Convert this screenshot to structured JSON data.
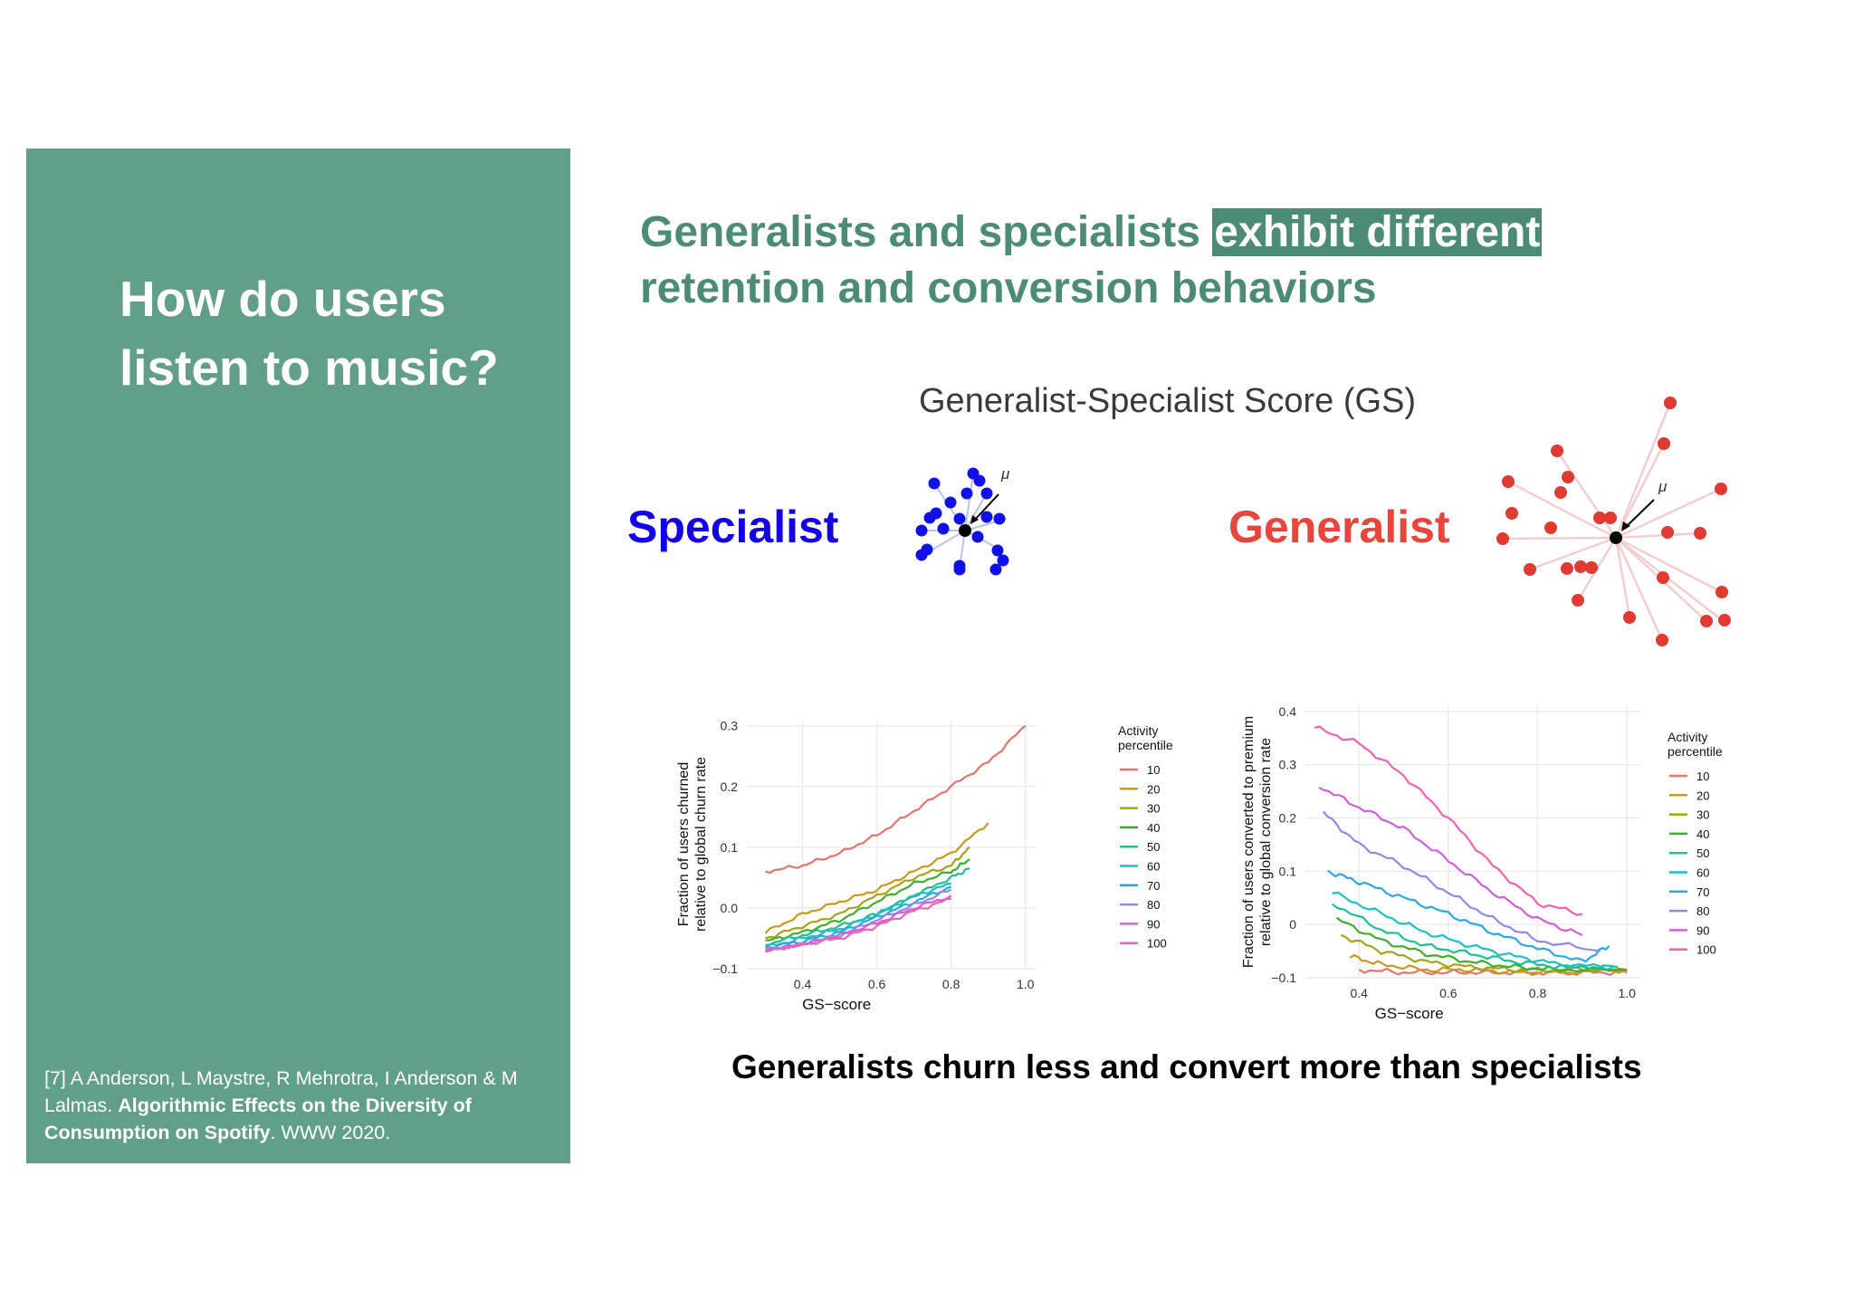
{
  "sidebar": {
    "title_line1": "How do users",
    "title_line2": "listen to music?",
    "citation": {
      "prefix": "[7] A Anderson, L Maystre, R Mehrotra, I Anderson & M Lalmas. ",
      "title": "Algorithmic Effects on the Diversity of Consumption on Spotify",
      "suffix": ". WWW 2020."
    },
    "background_color": "#629f88"
  },
  "headline": {
    "part1": "Generalists and specialists ",
    "highlight": "exhibit different",
    "line2": "retention and conversion behaviors",
    "color": "#4c8c73"
  },
  "gs_section": {
    "title": "Generalist-Specialist Score (GS)",
    "specialist_label": "Specialist",
    "generalist_label": "Generalist",
    "mu_symbol": "μ",
    "specialist_color": "#1400e6",
    "generalist_color": "#e8453c"
  },
  "caption": "Generalists churn less and convert more than specialists",
  "chart_data": [
    {
      "type": "line",
      "title": "",
      "xlabel": "GS−score",
      "ylabel": "Fraction of users churned relative to global churn rate",
      "xlim": [
        0.25,
        1.03
      ],
      "ylim": [
        -0.1,
        0.31
      ],
      "x_ticks": [
        "0.4",
        "0.6",
        "0.8",
        "1.0"
      ],
      "y_ticks": [
        "−0.1",
        "0.0",
        "0.1",
        "0.2",
        "0.3"
      ],
      "grid": true,
      "legend_title": "Activity percentile",
      "legend_position": "right",
      "series": [
        {
          "name": "10",
          "color": "#e8736d",
          "x": [
            0.3,
            0.4,
            0.5,
            0.6,
            0.7,
            0.8,
            0.9,
            1.0
          ],
          "values": [
            0.06,
            0.07,
            0.09,
            0.12,
            0.16,
            0.2,
            0.24,
            0.3
          ]
        },
        {
          "name": "20",
          "color": "#c99a1e",
          "x": [
            0.3,
            0.4,
            0.5,
            0.6,
            0.7,
            0.8,
            0.9
          ],
          "values": [
            -0.04,
            -0.01,
            0.01,
            0.03,
            0.06,
            0.09,
            0.14
          ]
        },
        {
          "name": "30",
          "color": "#a3a514",
          "x": [
            0.3,
            0.4,
            0.5,
            0.6,
            0.7,
            0.8,
            0.85
          ],
          "values": [
            -0.05,
            -0.03,
            -0.01,
            0.02,
            0.05,
            0.07,
            0.1
          ]
        },
        {
          "name": "40",
          "color": "#3fae2e",
          "x": [
            0.3,
            0.4,
            0.5,
            0.6,
            0.7,
            0.8,
            0.85
          ],
          "values": [
            -0.055,
            -0.04,
            -0.02,
            0.01,
            0.04,
            0.06,
            0.08
          ]
        },
        {
          "name": "50",
          "color": "#1fbf8f",
          "x": [
            0.3,
            0.4,
            0.5,
            0.6,
            0.7,
            0.8,
            0.85
          ],
          "values": [
            -0.06,
            -0.045,
            -0.03,
            -0.01,
            0.02,
            0.05,
            0.065
          ]
        },
        {
          "name": "60",
          "color": "#1ebfc0",
          "x": [
            0.3,
            0.4,
            0.5,
            0.6,
            0.7,
            0.8
          ],
          "values": [
            -0.065,
            -0.05,
            -0.035,
            -0.01,
            0.02,
            0.04
          ]
        },
        {
          "name": "70",
          "color": "#28a8e6",
          "x": [
            0.3,
            0.4,
            0.5,
            0.6,
            0.7,
            0.8
          ],
          "values": [
            -0.065,
            -0.055,
            -0.04,
            -0.015,
            0.01,
            0.035
          ]
        },
        {
          "name": "80",
          "color": "#8c8ce8",
          "x": [
            0.3,
            0.4,
            0.5,
            0.6,
            0.7,
            0.8
          ],
          "values": [
            -0.07,
            -0.06,
            -0.045,
            -0.02,
            0.005,
            0.03
          ]
        },
        {
          "name": "90",
          "color": "#d45ed9",
          "x": [
            0.3,
            0.4,
            0.5,
            0.6,
            0.7,
            0.8
          ],
          "values": [
            -0.07,
            -0.06,
            -0.045,
            -0.025,
            0.0,
            0.02
          ]
        },
        {
          "name": "100",
          "color": "#f063b4",
          "x": [
            0.3,
            0.4,
            0.5,
            0.6,
            0.7,
            0.8
          ],
          "values": [
            -0.07,
            -0.06,
            -0.05,
            -0.03,
            -0.005,
            0.015
          ]
        }
      ]
    },
    {
      "type": "line",
      "title": "",
      "xlabel": "GS−score",
      "ylabel": "Fraction of users converted to premium relative to global conversion rate",
      "xlim": [
        0.28,
        1.03
      ],
      "ylim": [
        -0.1,
        0.41
      ],
      "x_ticks": [
        "0.4",
        "0.6",
        "0.8",
        "1.0"
      ],
      "y_ticks": [
        "−0.1",
        "0",
        "0.1",
        "0.2",
        "0.3",
        "0.4"
      ],
      "grid": true,
      "legend_title": "Activity percentile",
      "legend_position": "right",
      "series": [
        {
          "name": "10",
          "color": "#e8736d",
          "x": [
            0.4,
            0.5,
            0.6,
            0.7,
            0.8,
            0.9,
            1.0
          ],
          "values": [
            -0.085,
            -0.09,
            -0.09,
            -0.09,
            -0.09,
            -0.09,
            -0.09
          ]
        },
        {
          "name": "20",
          "color": "#c99a1e",
          "x": [
            0.38,
            0.45,
            0.55,
            0.65,
            0.75,
            0.85,
            1.0
          ],
          "values": [
            -0.06,
            -0.075,
            -0.085,
            -0.085,
            -0.09,
            -0.09,
            -0.085
          ]
        },
        {
          "name": "30",
          "color": "#a3a514",
          "x": [
            0.36,
            0.45,
            0.55,
            0.65,
            0.75,
            0.85,
            1.0
          ],
          "values": [
            -0.02,
            -0.05,
            -0.07,
            -0.08,
            -0.085,
            -0.085,
            -0.085
          ]
        },
        {
          "name": "40",
          "color": "#3fae2e",
          "x": [
            0.35,
            0.45,
            0.55,
            0.65,
            0.75,
            0.85,
            1.0
          ],
          "values": [
            0.01,
            -0.03,
            -0.055,
            -0.07,
            -0.08,
            -0.085,
            -0.085
          ]
        },
        {
          "name": "50",
          "color": "#1fbf8f",
          "x": [
            0.34,
            0.45,
            0.55,
            0.65,
            0.75,
            0.85,
            0.98
          ],
          "values": [
            0.04,
            -0.01,
            -0.04,
            -0.055,
            -0.07,
            -0.08,
            -0.08
          ]
        },
        {
          "name": "60",
          "color": "#1ebfc0",
          "x": [
            0.34,
            0.45,
            0.55,
            0.65,
            0.75,
            0.85,
            0.97
          ],
          "values": [
            0.06,
            0.02,
            -0.015,
            -0.04,
            -0.06,
            -0.075,
            -0.08
          ]
        },
        {
          "name": "70",
          "color": "#28a8e6",
          "x": [
            0.33,
            0.4,
            0.5,
            0.6,
            0.7,
            0.8,
            0.9,
            0.96
          ],
          "values": [
            0.1,
            0.08,
            0.05,
            0.02,
            -0.015,
            -0.045,
            -0.07,
            -0.04
          ]
        },
        {
          "name": "80",
          "color": "#8c8ce8",
          "x": [
            0.32,
            0.4,
            0.5,
            0.6,
            0.7,
            0.8,
            0.94
          ],
          "values": [
            0.21,
            0.15,
            0.11,
            0.06,
            0.01,
            -0.03,
            -0.05
          ]
        },
        {
          "name": "90",
          "color": "#d45ed9",
          "x": [
            0.31,
            0.4,
            0.5,
            0.6,
            0.7,
            0.8,
            0.9
          ],
          "values": [
            0.26,
            0.22,
            0.18,
            0.12,
            0.06,
            0.01,
            -0.02
          ]
        },
        {
          "name": "100",
          "color": "#f063b4",
          "x": [
            0.3,
            0.4,
            0.5,
            0.6,
            0.7,
            0.8,
            0.9
          ],
          "values": [
            0.37,
            0.34,
            0.28,
            0.2,
            0.11,
            0.04,
            0.02
          ]
        }
      ]
    }
  ]
}
